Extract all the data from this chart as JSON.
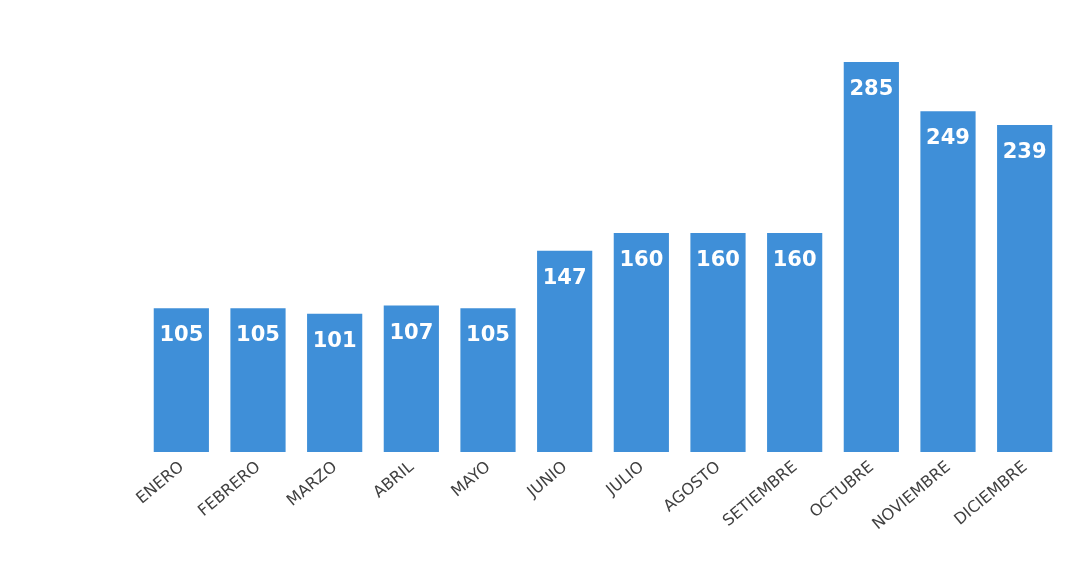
{
  "chart_data": {
    "type": "bar",
    "categories": [
      "ENERO",
      "FEBRERO",
      "MARZO",
      "ABRIL",
      "MAYO",
      "JUNIO",
      "JULIO",
      "AGOSTO",
      "SETIEMBRE",
      "OCTUBRE",
      "NOVIEMBRE",
      "DICIEMBRE"
    ],
    "values": [
      105,
      105,
      101,
      107,
      105,
      147,
      160,
      160,
      160,
      285,
      249,
      239
    ],
    "color": "#3f8fd8",
    "data_labels": true
  }
}
